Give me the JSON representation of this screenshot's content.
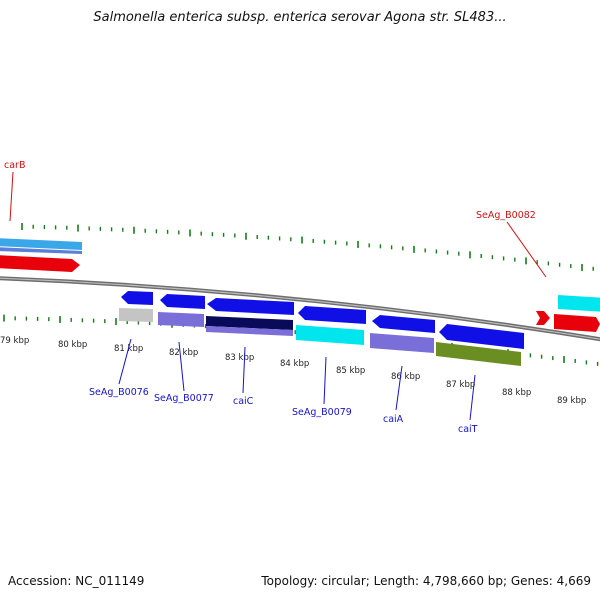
{
  "title": "Salmonella enterica subsp. enterica serovar Agona str. SL483...",
  "footer": {
    "accession": "Accession: NC_011149",
    "topology": "Topology: circular; Length: 4,798,660 bp; Genes: 4,669"
  },
  "colors": {
    "forward_strand": "#e8000b",
    "reverse_strand": "#0000e0",
    "cyan_gene": "#00e5ee",
    "purple_gene": "#7a6fd8",
    "navy_gene": "#0a0a5a",
    "olive_gene": "#6b8e23",
    "gray_gene": "#c0c0c0",
    "tick": "#1a7a1a",
    "backbone": "#808080",
    "label_blue": "#1414c8",
    "label_red": "#c81414"
  },
  "kbp_labels": [
    "79 kbp",
    "80 kbp",
    "81 kbp",
    "82 kbp",
    "83 kbp",
    "84 kbp",
    "85 kbp",
    "86 kbp",
    "87 kbp",
    "88 kbp",
    "89 kbp"
  ],
  "gene_labels": [
    {
      "text": "carB",
      "color": "red"
    },
    {
      "text": "SeAg_B0082",
      "color": "red"
    },
    {
      "text": "SeAg_B0076",
      "color": "blue"
    },
    {
      "text": "SeAg_B0077",
      "color": "blue"
    },
    {
      "text": "caiC",
      "color": "blue"
    },
    {
      "text": "SeAg_B0079",
      "color": "blue"
    },
    {
      "text": "caiA",
      "color": "blue"
    },
    {
      "text": "caiT",
      "color": "blue"
    }
  ]
}
